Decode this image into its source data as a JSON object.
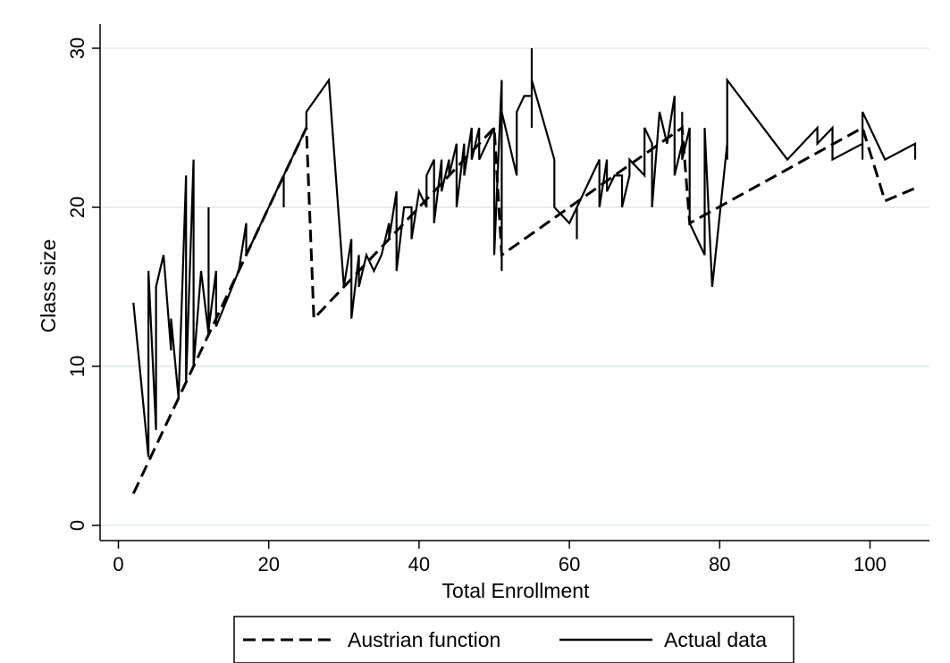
{
  "chart_data": {
    "type": "line",
    "title": "",
    "xlabel": "Total Enrollment",
    "ylabel": "Class size",
    "xlim": [
      0,
      106
    ],
    "ylim": [
      0,
      30
    ],
    "xticks": [
      0,
      20,
      40,
      60,
      80,
      100
    ],
    "yticks": [
      0,
      10,
      20,
      30
    ],
    "grid": "horizontal",
    "legend_position": "bottom",
    "series": [
      {
        "name": "Austrian function",
        "style": "dashed",
        "color": "#000000",
        "points": [
          [
            2,
            2
          ],
          [
            25,
            25
          ],
          [
            26,
            13
          ],
          [
            50,
            25
          ],
          [
            51,
            17
          ],
          [
            75,
            25
          ],
          [
            76,
            19
          ],
          [
            99,
            25
          ],
          [
            102,
            20.4
          ],
          [
            106,
            21.2
          ]
        ]
      },
      {
        "name": "Actual data",
        "style": "solid",
        "color": "#000000",
        "points": [
          [
            2,
            14
          ],
          [
            4,
            4.3
          ],
          [
            4,
            16
          ],
          [
            5,
            6
          ],
          [
            5,
            15
          ],
          [
            6,
            17
          ],
          [
            7,
            11
          ],
          [
            7,
            13
          ],
          [
            8,
            8
          ],
          [
            9,
            22
          ],
          [
            9,
            9
          ],
          [
            10,
            23
          ],
          [
            10,
            10
          ],
          [
            11,
            16
          ],
          [
            12,
            12
          ],
          [
            12,
            20
          ],
          [
            12,
            12.3
          ],
          [
            13,
            16
          ],
          [
            13,
            12.5
          ],
          [
            16,
            16
          ],
          [
            17,
            19
          ],
          [
            17,
            17
          ],
          [
            22,
            22
          ],
          [
            22,
            21
          ],
          [
            22,
            20
          ],
          [
            22,
            22
          ],
          [
            25,
            25
          ],
          [
            25,
            26
          ],
          [
            28,
            28
          ],
          [
            30,
            15
          ],
          [
            31,
            18
          ],
          [
            31,
            13
          ],
          [
            32,
            17
          ],
          [
            32,
            15
          ],
          [
            33,
            17
          ],
          [
            34,
            16
          ],
          [
            35,
            17
          ],
          [
            36,
            19
          ],
          [
            36,
            18
          ],
          [
            37,
            21
          ],
          [
            37,
            16
          ],
          [
            38,
            20
          ],
          [
            39,
            20
          ],
          [
            39,
            18
          ],
          [
            40,
            21
          ],
          [
            41,
            20
          ],
          [
            41,
            22
          ],
          [
            42,
            23
          ],
          [
            42,
            19
          ],
          [
            43,
            23
          ],
          [
            43,
            21
          ],
          [
            44,
            23
          ],
          [
            44,
            22
          ],
          [
            45,
            24
          ],
          [
            45,
            20
          ],
          [
            46,
            24
          ],
          [
            46,
            22
          ],
          [
            47,
            25
          ],
          [
            47,
            23
          ],
          [
            48,
            25
          ],
          [
            48,
            23
          ],
          [
            50,
            25
          ],
          [
            50,
            17
          ],
          [
            51,
            28
          ],
          [
            51,
            16
          ],
          [
            51,
            26
          ],
          [
            53,
            22
          ],
          [
            53,
            26
          ],
          [
            54,
            27
          ],
          [
            55,
            27
          ],
          [
            55,
            30
          ],
          [
            55,
            25
          ],
          [
            55,
            28
          ],
          [
            58,
            23
          ],
          [
            58,
            20
          ],
          [
            60,
            19
          ],
          [
            61,
            20
          ],
          [
            61,
            18
          ],
          [
            61,
            20
          ],
          [
            64,
            23
          ],
          [
            64,
            20
          ],
          [
            65,
            23
          ],
          [
            65,
            21
          ],
          [
            66,
            22
          ],
          [
            67,
            22
          ],
          [
            67,
            20
          ],
          [
            68,
            22
          ],
          [
            68,
            23
          ],
          [
            70,
            22
          ],
          [
            70,
            25
          ],
          [
            71,
            24
          ],
          [
            71,
            20
          ],
          [
            72,
            26
          ],
          [
            73,
            24
          ],
          [
            74,
            27
          ],
          [
            74,
            22
          ],
          [
            75,
            24
          ],
          [
            75,
            26
          ],
          [
            75,
            23
          ],
          [
            76,
            25
          ],
          [
            76,
            19
          ],
          [
            78,
            17
          ],
          [
            78,
            25
          ],
          [
            79,
            15
          ],
          [
            81,
            24
          ],
          [
            81,
            23
          ],
          [
            81,
            28
          ],
          [
            89,
            23
          ],
          [
            93,
            25
          ],
          [
            93,
            24
          ],
          [
            95,
            25
          ],
          [
            95,
            23
          ],
          [
            99,
            24
          ],
          [
            99,
            23
          ],
          [
            99,
            26
          ],
          [
            102,
            23
          ],
          [
            106,
            24
          ],
          [
            106,
            23
          ]
        ]
      }
    ]
  }
}
